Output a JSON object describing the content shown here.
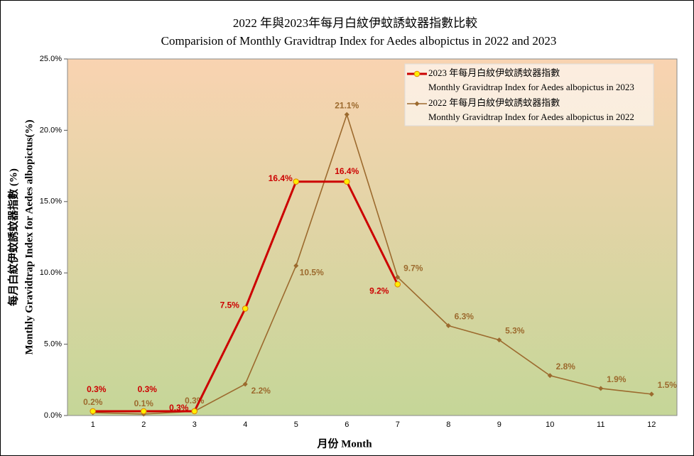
{
  "chart_data": {
    "type": "line",
    "title": "2022 年與2023年每月白紋伊蚊誘蚊器指數比較",
    "subtitle": "Comparision of Monthly Gravidtrap Index for Aedes albopictus in 2022 and 2023",
    "x_label": "月份 Month",
    "y_label": [
      "每月白紋伊蚊誘蚊器指數 (%)",
      "Monthly Gravidtrap Index for Aedes albopictus(%)"
    ],
    "categories": [
      "1",
      "2",
      "3",
      "4",
      "5",
      "6",
      "7",
      "8",
      "9",
      "10",
      "11",
      "12"
    ],
    "ylim": [
      0,
      25
    ],
    "yticks": [
      {
        "value": 0,
        "label": "0.0%"
      },
      {
        "value": 5,
        "label": "5.0%"
      },
      {
        "value": 10,
        "label": "10.0%"
      },
      {
        "value": 15,
        "label": "15.0%"
      },
      {
        "value": 20,
        "label": "20.0%"
      },
      {
        "value": 25,
        "label": "25.0%"
      }
    ],
    "grid": false,
    "legend": "upper right",
    "series": [
      {
        "name": "2023 年每月白紋伊蚊誘蚊器指數",
        "description": "Monthly Gravidtrap Index  for Aedes albopictus in 2023",
        "color": "#cc0000",
        "marker": "circle",
        "marker_color": "#ffee00",
        "values": [
          0.3,
          0.3,
          0.3,
          7.5,
          16.4,
          16.4,
          9.2,
          null,
          null,
          null,
          null,
          null
        ],
        "value_labels": [
          "0.3%",
          "0.3%",
          "0.3%",
          "7.5%",
          "16.4%",
          "16.4%",
          "9.2%",
          null,
          null,
          null,
          null,
          null
        ]
      },
      {
        "name": "2022 年每月白紋伊蚊誘蚊器指數",
        "description": "Monthly Gravidtrap Index  for Aedes albopictus in 2022",
        "color": "#9c6a2e",
        "marker": "diamond",
        "marker_color": "#9c6a2e",
        "values": [
          0.2,
          0.1,
          0.3,
          2.2,
          10.5,
          21.1,
          9.7,
          6.3,
          5.3,
          2.8,
          1.9,
          1.5
        ],
        "value_labels": [
          "0.2%",
          "0.1%",
          "0.3%",
          "2.2%",
          "10.5%",
          "21.1%",
          "9.7%",
          "6.3%",
          "5.3%",
          "2.8%",
          "1.9%",
          "1.5%"
        ]
      }
    ]
  }
}
